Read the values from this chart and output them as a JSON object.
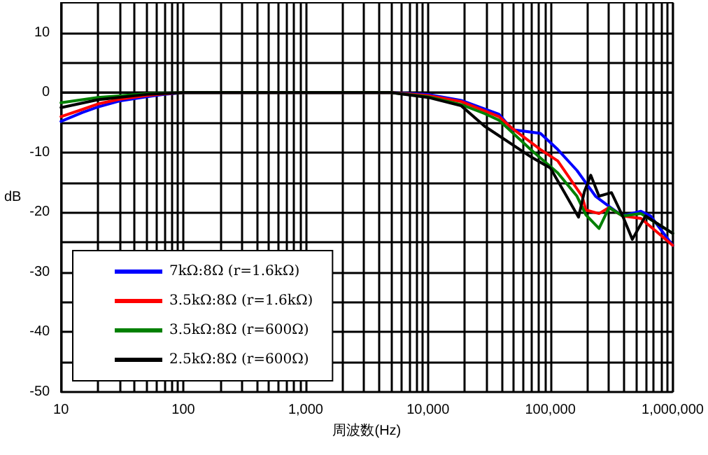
{
  "chart_data": {
    "type": "line",
    "xlabel": "周波数(Hz)",
    "ylabel": "dB",
    "log": "x",
    "xlim": [
      10,
      1000000
    ],
    "ylim": [
      -50,
      15
    ],
    "xticks": [
      {
        "value": 10,
        "label": "10"
      },
      {
        "value": 20,
        "label": null
      },
      {
        "value": 30,
        "label": null
      },
      {
        "value": 40,
        "label": null
      },
      {
        "value": 50,
        "label": null
      },
      {
        "value": 60,
        "label": null
      },
      {
        "value": 70,
        "label": null
      },
      {
        "value": 80,
        "label": null
      },
      {
        "value": 90,
        "label": null
      },
      {
        "value": 100,
        "label": "100"
      },
      {
        "value": 200,
        "label": null
      },
      {
        "value": 300,
        "label": null
      },
      {
        "value": 400,
        "label": null
      },
      {
        "value": 500,
        "label": null
      },
      {
        "value": 600,
        "label": null
      },
      {
        "value": 700,
        "label": null
      },
      {
        "value": 800,
        "label": null
      },
      {
        "value": 900,
        "label": null
      },
      {
        "value": 1000,
        "label": "1,000"
      },
      {
        "value": 2000,
        "label": null
      },
      {
        "value": 3000,
        "label": null
      },
      {
        "value": 4000,
        "label": null
      },
      {
        "value": 5000,
        "label": null
      },
      {
        "value": 6000,
        "label": null
      },
      {
        "value": 7000,
        "label": null
      },
      {
        "value": 8000,
        "label": null
      },
      {
        "value": 9000,
        "label": null
      },
      {
        "value": 10000,
        "label": "10,000"
      },
      {
        "value": 20000,
        "label": null
      },
      {
        "value": 30000,
        "label": null
      },
      {
        "value": 40000,
        "label": null
      },
      {
        "value": 50000,
        "label": null
      },
      {
        "value": 60000,
        "label": null
      },
      {
        "value": 70000,
        "label": null
      },
      {
        "value": 80000,
        "label": null
      },
      {
        "value": 90000,
        "label": null
      },
      {
        "value": 100000,
        "label": "100,000"
      },
      {
        "value": 200000,
        "label": null
      },
      {
        "value": 300000,
        "label": null
      },
      {
        "value": 400000,
        "label": null
      },
      {
        "value": 500000,
        "label": null
      },
      {
        "value": 600000,
        "label": null
      },
      {
        "value": 700000,
        "label": null
      },
      {
        "value": 800000,
        "label": null
      },
      {
        "value": 900000,
        "label": null
      },
      {
        "value": 1000000,
        "label": "1,000,000"
      }
    ],
    "yticks": [
      -50,
      {
        "value": -45,
        "label": null
      },
      -40,
      {
        "value": -35,
        "label": null
      },
      -30,
      {
        "value": -25,
        "label": null
      },
      -20,
      {
        "value": -15,
        "label": null
      },
      -10,
      {
        "value": -5,
        "label": null
      },
      0,
      {
        "value": 5,
        "label": null
      },
      10
    ],
    "grid": true,
    "legend": "bottom left",
    "marker": "none",
    "line_style": "solid",
    "series": [
      {
        "name": "7kΩ:8Ω (r=1.6kΩ)",
        "color": "#0000ff",
        "x": [
          10,
          15,
          20,
          30,
          50,
          70,
          100,
          1000,
          5000,
          10000,
          18700,
          38000,
          49000,
          83000,
          115000,
          165000,
          234000,
          302000,
          390000,
          550000,
          660000,
          1000000
        ],
        "values": [
          -4.8,
          -3.3,
          -2.4,
          -1.4,
          -0.7,
          -0.3,
          0,
          0,
          0,
          -0.3,
          -1.3,
          -3.6,
          -6.2,
          -6.8,
          -9.5,
          -13,
          -17.3,
          -19,
          -20.6,
          -19.8,
          -20.6,
          -25.5
        ]
      },
      {
        "name": "3.5kΩ:8Ω (r=1.6kΩ)",
        "color": "#ff0000",
        "x": [
          10,
          15,
          20,
          30,
          50,
          70,
          100,
          1000,
          5000,
          10000,
          18700,
          38000,
          49000,
          83000,
          115000,
          152000,
          182000,
          195000,
          250000,
          302000,
          390000,
          550000,
          1000000
        ],
        "values": [
          -4,
          -2.8,
          -1.9,
          -1.1,
          -0.5,
          -0.2,
          0,
          0,
          0,
          -0.5,
          -1.5,
          -4,
          -6,
          -9.5,
          -11.4,
          -15,
          -17.3,
          -19.6,
          -20.2,
          -19.2,
          -20.6,
          -21,
          -25.5
        ]
      },
      {
        "name": "3.5kΩ:8Ω (r=600Ω)",
        "color": "#008000",
        "x": [
          10,
          20,
          50,
          100,
          1000,
          5000,
          10000,
          18700,
          29000,
          38000,
          69000,
          115000,
          165000,
          195000,
          250000,
          302000,
          390000,
          550000,
          1000000
        ],
        "values": [
          -1.7,
          -0.8,
          -0.2,
          0,
          0,
          0,
          -0.7,
          -2,
          -3.5,
          -4.6,
          -9.5,
          -13.4,
          -17.3,
          -20.4,
          -22.7,
          -19.2,
          -20.6,
          -20.2,
          -23.5
        ]
      },
      {
        "name": "2.5kΩ:8Ω (r=600Ω)",
        "color": "#000000",
        "x": [
          10,
          20,
          50,
          100,
          1000,
          5000,
          10000,
          18700,
          29000,
          69000,
          100000,
          129000,
          170000,
          190000,
          214000,
          250000,
          316000,
          390000,
          468000,
          600000,
          1000000
        ],
        "values": [
          -2.5,
          -1.2,
          -0.3,
          0,
          0,
          0,
          -0.8,
          -2.2,
          -5.6,
          -10.7,
          -12.6,
          -16.5,
          -20.8,
          -16.5,
          -13.8,
          -17.3,
          -16.7,
          -20.6,
          -24.5,
          -20.6,
          -23.5
        ]
      }
    ]
  }
}
